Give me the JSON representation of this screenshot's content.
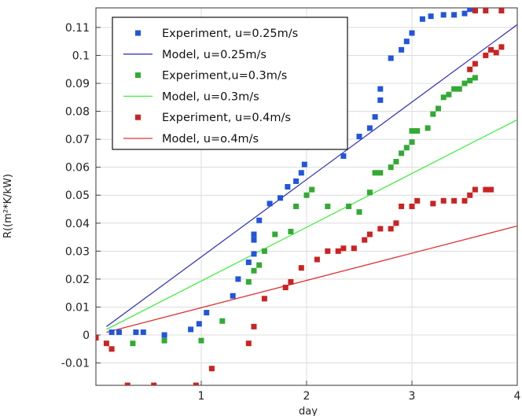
{
  "chart_data": {
    "type": "scatter",
    "xlabel": "day",
    "ylabel": "R((m²*K/kW)",
    "xlim": [
      0,
      4
    ],
    "ylim": [
      -0.018,
      0.117
    ],
    "x_ticks": [
      "1",
      "2",
      "3",
      "4"
    ],
    "x_tick_values": [
      1,
      2,
      3,
      4
    ],
    "y_ticks": [
      "-0.01",
      "0",
      "0.01",
      "0.02",
      "0.03",
      "0.04",
      "0.05",
      "0.06",
      "0.07",
      "0.08",
      "0.09",
      "0.1",
      "0.11"
    ],
    "y_tick_values": [
      -0.01,
      0,
      0.01,
      0.02,
      0.03,
      0.04,
      0.05,
      0.06,
      0.07,
      0.08,
      0.09,
      0.1,
      0.11
    ],
    "grid": true,
    "legend_position": "top-left",
    "series": [
      {
        "name": "Experiment, u=0.25m/s",
        "kind": "scatter",
        "color": "#2255dd",
        "points": [
          [
            0.15,
            0.001
          ],
          [
            0.22,
            0.001
          ],
          [
            0.38,
            0.001
          ],
          [
            0.45,
            0.001
          ],
          [
            0.65,
            0.0
          ],
          [
            0.9,
            0.002
          ],
          [
            0.98,
            0.004
          ],
          [
            1.05,
            0.008
          ],
          [
            1.3,
            0.014
          ],
          [
            1.35,
            0.02
          ],
          [
            1.45,
            0.026
          ],
          [
            1.5,
            0.029
          ],
          [
            1.5,
            0.034
          ],
          [
            1.5,
            0.036
          ],
          [
            1.55,
            0.041
          ],
          [
            1.65,
            0.047
          ],
          [
            1.75,
            0.049
          ],
          [
            1.82,
            0.053
          ],
          [
            1.9,
            0.055
          ],
          [
            1.95,
            0.058
          ],
          [
            1.98,
            0.061
          ],
          [
            2.35,
            0.064
          ],
          [
            2.5,
            0.071
          ],
          [
            2.6,
            0.074
          ],
          [
            2.65,
            0.078
          ],
          [
            2.7,
            0.084
          ],
          [
            2.7,
            0.088
          ],
          [
            2.8,
            0.099
          ],
          [
            2.9,
            0.102
          ],
          [
            2.95,
            0.105
          ],
          [
            3.0,
            0.108
          ],
          [
            3.1,
            0.113
          ],
          [
            3.18,
            0.114
          ],
          [
            3.3,
            0.1145
          ],
          [
            3.4,
            0.1145
          ],
          [
            3.5,
            0.115
          ],
          [
            3.55,
            0.1165
          ],
          [
            3.6,
            0.1165
          ]
        ]
      },
      {
        "name": "Model, u=0.25m/s",
        "kind": "line",
        "color": "#3a3ab8",
        "x": [
          0.1,
          4.0
        ],
        "y": [
          0.003,
          0.111
        ]
      },
      {
        "name": "Experiment,u=0.3m/s",
        "kind": "scatter",
        "color": "#33aa33",
        "points": [
          [
            0.35,
            -0.003
          ],
          [
            0.65,
            -0.002
          ],
          [
            1.0,
            -0.002
          ],
          [
            1.2,
            0.005
          ],
          [
            1.45,
            0.019
          ],
          [
            1.5,
            0.023
          ],
          [
            1.55,
            0.025
          ],
          [
            1.6,
            0.03
          ],
          [
            1.7,
            0.036
          ],
          [
            1.85,
            0.037
          ],
          [
            1.9,
            0.046
          ],
          [
            2.0,
            0.05
          ],
          [
            2.05,
            0.052
          ],
          [
            2.2,
            0.046
          ],
          [
            2.4,
            0.046
          ],
          [
            2.5,
            0.044
          ],
          [
            2.6,
            0.051
          ],
          [
            2.65,
            0.058
          ],
          [
            2.7,
            0.058
          ],
          [
            2.8,
            0.06
          ],
          [
            2.85,
            0.062
          ],
          [
            2.9,
            0.065
          ],
          [
            2.95,
            0.067
          ],
          [
            3.0,
            0.069
          ],
          [
            3.0,
            0.073
          ],
          [
            3.05,
            0.073
          ],
          [
            3.15,
            0.074
          ],
          [
            3.2,
            0.079
          ],
          [
            3.25,
            0.081
          ],
          [
            3.3,
            0.085
          ],
          [
            3.35,
            0.086
          ],
          [
            3.4,
            0.088
          ],
          [
            3.45,
            0.088
          ],
          [
            3.5,
            0.09
          ],
          [
            3.55,
            0.091
          ],
          [
            3.6,
            0.092
          ]
        ]
      },
      {
        "name": "Model, u=0.3m/s",
        "kind": "line",
        "color": "#44ee44",
        "x": [
          0.1,
          4.0
        ],
        "y": [
          0.002,
          0.077
        ]
      },
      {
        "name": "Experiment, u=0.4m/s",
        "kind": "scatter",
        "color": "#cc2222",
        "points": [
          [
            0.0,
            -0.001
          ],
          [
            0.1,
            -0.003
          ],
          [
            0.15,
            -0.005
          ],
          [
            0.3,
            -0.018
          ],
          [
            0.55,
            -0.018
          ],
          [
            0.95,
            -0.018
          ],
          [
            1.1,
            -0.012
          ],
          [
            1.45,
            -0.003
          ],
          [
            1.5,
            0.003
          ],
          [
            1.6,
            0.013
          ],
          [
            1.8,
            0.017
          ],
          [
            1.85,
            0.019
          ],
          [
            1.95,
            0.024
          ],
          [
            2.1,
            0.027
          ],
          [
            2.2,
            0.03
          ],
          [
            2.3,
            0.03
          ],
          [
            2.35,
            0.031
          ],
          [
            2.45,
            0.031
          ],
          [
            2.55,
            0.034
          ],
          [
            2.6,
            0.036
          ],
          [
            2.7,
            0.038
          ],
          [
            2.8,
            0.038
          ],
          [
            2.85,
            0.04
          ],
          [
            2.9,
            0.046
          ],
          [
            3.0,
            0.046
          ],
          [
            3.05,
            0.048
          ],
          [
            3.2,
            0.047
          ],
          [
            3.3,
            0.048
          ],
          [
            3.4,
            0.048
          ],
          [
            3.5,
            0.048
          ],
          [
            3.55,
            0.05
          ],
          [
            3.6,
            0.052
          ],
          [
            3.7,
            0.052
          ],
          [
            3.75,
            0.052
          ],
          [
            3.55,
            0.095
          ],
          [
            3.6,
            0.097
          ],
          [
            3.7,
            0.1
          ],
          [
            3.75,
            0.102
          ],
          [
            3.8,
            0.101
          ],
          [
            3.85,
            0.103
          ],
          [
            3.6,
            0.116
          ],
          [
            3.7,
            0.116
          ],
          [
            3.85,
            0.116
          ]
        ]
      },
      {
        "name": "Model, u=o.4m/s",
        "kind": "line",
        "color": "#dd3333",
        "x": [
          0.1,
          4.0
        ],
        "y": [
          0.001,
          0.039
        ]
      }
    ]
  }
}
